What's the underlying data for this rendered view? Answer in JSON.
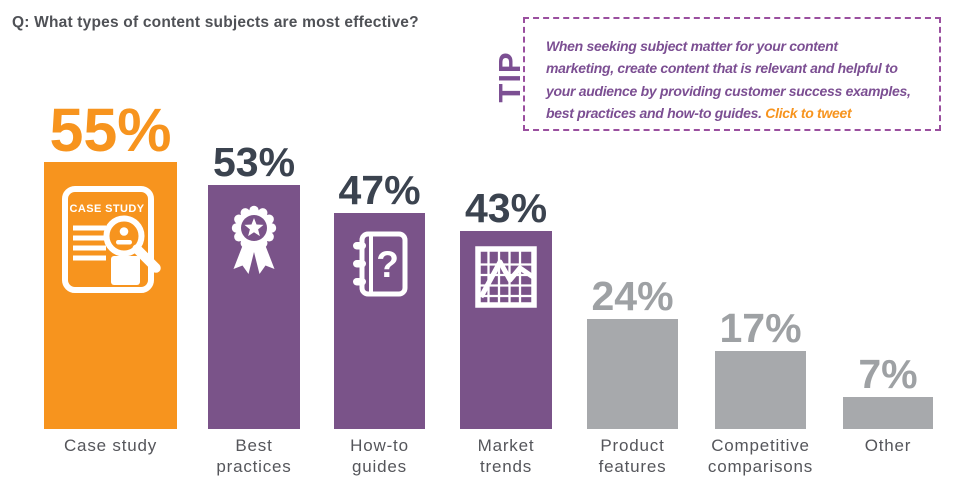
{
  "title": "Q: What types of content subjects are most effective?",
  "tip": {
    "label": "TIP",
    "lines": [
      "When seeking subject matter for your content",
      "marketing, create content that is relevant and helpful to",
      "your audience by providing customer success examples,",
      "best practices and how-to guides."
    ],
    "link_text": "Click to tweet",
    "text_color": "#7C4F93",
    "border_color": "#9A4F9F",
    "link_color": "#F7941E"
  },
  "chart_data": {
    "type": "bar",
    "title": "Q: What types of content subjects are most effective?",
    "unit": "percent",
    "ylim": [
      0,
      60
    ],
    "grid": false,
    "legend": "none",
    "categories": [
      "Case study",
      "Best practices",
      "How-to guides",
      "Market trends",
      "Product features",
      "Competitive comparisons",
      "Other"
    ],
    "values": [
      55,
      53,
      47,
      43,
      24,
      17,
      7
    ],
    "colors": {
      "highlight_orange": "#F7941E",
      "purple": "#7A5389",
      "gray": "#A7A9AC",
      "dark_value_text": "#3B434F",
      "gray_value_text": "#9EA1A4",
      "category_text": "#55565B"
    },
    "bars": [
      {
        "category": "Case study",
        "label_lines": [
          "Case study"
        ],
        "value": 55,
        "pct_label": "55%",
        "color": "#F7941E",
        "pct_color": "#F7941E",
        "icon": "case-study-document-icon",
        "icon_text": "CASE STUDY",
        "emphasis": true
      },
      {
        "category": "Best practices",
        "label_lines": [
          "Best",
          "practices"
        ],
        "value": 53,
        "pct_label": "53%",
        "color": "#7A5389",
        "pct_color": "#3B434F",
        "icon": "award-ribbon-icon"
      },
      {
        "category": "How-to guides",
        "label_lines": [
          "How-to",
          "guides"
        ],
        "value": 47,
        "pct_label": "47%",
        "color": "#7A5389",
        "pct_color": "#3B434F",
        "icon": "notebook-question-icon",
        "icon_text": "?"
      },
      {
        "category": "Market trends",
        "label_lines": [
          "Market",
          "trends"
        ],
        "value": 43,
        "pct_label": "43%",
        "color": "#7A5389",
        "pct_color": "#3B434F",
        "icon": "line-chart-grid-icon"
      },
      {
        "category": "Product features",
        "label_lines": [
          "Product",
          "features"
        ],
        "value": 24,
        "pct_label": "24%",
        "color": "#A7A9AC",
        "pct_color": "#9EA1A4",
        "icon": null
      },
      {
        "category": "Competitive comparisons",
        "label_lines": [
          "Competitive",
          "comparisons"
        ],
        "value": 17,
        "pct_label": "17%",
        "color": "#A7A9AC",
        "pct_color": "#9EA1A4",
        "icon": null
      },
      {
        "category": "Other",
        "label_lines": [
          "Other"
        ],
        "value": 7,
        "pct_label": "7%",
        "color": "#A7A9AC",
        "pct_color": "#9EA1A4",
        "icon": null
      }
    ]
  }
}
